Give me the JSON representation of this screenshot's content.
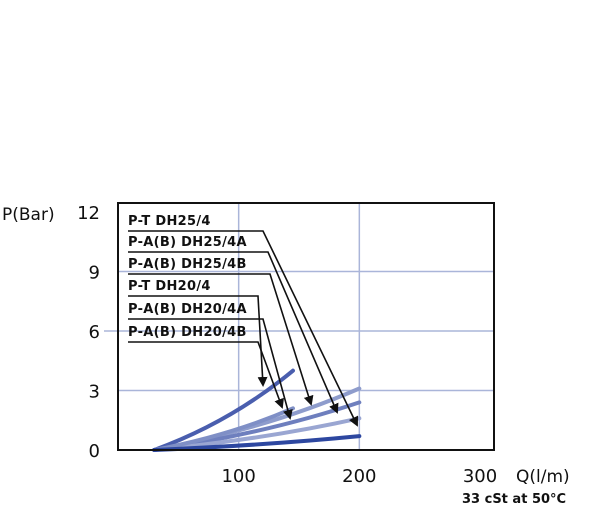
{
  "chart_data": {
    "type": "line",
    "ylabel": "P(Bar)",
    "xlabel": "Q(l/m)",
    "note": "33 cSt at 50°C",
    "xlim": [
      0,
      300
    ],
    "ylim": [
      0,
      12
    ],
    "xticks": [
      100,
      200,
      300
    ],
    "yticks": [
      0,
      3,
      6,
      9,
      12
    ],
    "grid": true,
    "series": [
      {
        "name": "P-T DH25/4",
        "color": "#8e9ccc",
        "x": [
          30,
          200
        ],
        "y": [
          0,
          3.1
        ]
      },
      {
        "name": "P-A(B) DH25/4A",
        "color": "#6e7fbe",
        "x": [
          30,
          200
        ],
        "y": [
          0,
          2.4
        ]
      },
      {
        "name": "P-A(B) DH25/4B",
        "color": "#9aa6d2",
        "x": [
          30,
          200
        ],
        "y": [
          0,
          1.6
        ]
      },
      {
        "name": "P-T DH20/4",
        "color": "#4a5eae",
        "x": [
          30,
          145
        ],
        "y": [
          0,
          4.0
        ]
      },
      {
        "name": "P-A(B) DH20/4A",
        "color": "#7f8fc6",
        "x": [
          30,
          145
        ],
        "y": [
          0,
          2.1
        ]
      },
      {
        "name": "P-A(B) DH20/4B",
        "color": "#2d47a0",
        "x": [
          30,
          200
        ],
        "y": [
          0,
          0.7
        ]
      }
    ]
  }
}
